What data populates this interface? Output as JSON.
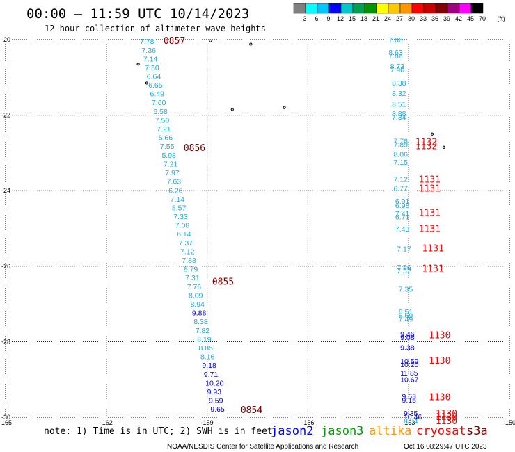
{
  "header": {
    "title": "00:00 – 11:59 UTC 10/14/2023",
    "subtitle": "12 hour collection of altimeter wave heights"
  },
  "colorbar": {
    "unit": "(ft)",
    "ticks": [
      "3",
      "6",
      "9",
      "12",
      "15",
      "18",
      "21",
      "24",
      "27",
      "30",
      "33",
      "36",
      "39",
      "42",
      "45",
      "70"
    ],
    "colors": [
      "#808080",
      "#00ffff",
      "#00c8ff",
      "#0000ff",
      "#00c8c8",
      "#00a050",
      "#009600",
      "#ffff00",
      "#ffc800",
      "#ff9600",
      "#ff0000",
      "#c80000",
      "#800000",
      "#a00080",
      "#ff00ff",
      "#000000"
    ]
  },
  "footer": {
    "note": "note: 1) Time is in UTC; 2) SWH is in feet",
    "credit": "NOAA/NESDIS Center for Satellite Applications and Research",
    "timestamp": "Oct 16 08:29:47 UTC 2023",
    "satellites": [
      {
        "name": "jason2",
        "color": "#0000ff"
      },
      {
        "name": "jason3",
        "color": "#00a000"
      },
      {
        "name": "altika",
        "color": "#ff9600"
      },
      {
        "name": "cryosat",
        "color": "#ff0000"
      },
      {
        "name": "s3a",
        "color": "#800000"
      }
    ]
  },
  "chart_data": {
    "type": "scatter",
    "xlim": [
      -165,
      -150
    ],
    "ylim": [
      -30,
      -20
    ],
    "xticks": [
      -165,
      -162,
      -159,
      -156,
      -153,
      -150
    ],
    "yticks": [
      -20,
      -22,
      -24,
      -26,
      -28,
      -30
    ],
    "xtick_labels": [
      "-165",
      "-162",
      "-159",
      "-156",
      "-153",
      "-150"
    ],
    "ytick_labels": [
      "-20",
      "-22",
      "-24",
      "-26",
      "-28",
      "-30"
    ],
    "grid": true,
    "tracks": [
      {
        "points": [
          {
            "x": -161.0,
            "y": -20.04,
            "v": "7.78",
            "c": "#20a8d8"
          },
          {
            "x": -160.95,
            "y": -20.28,
            "v": "7.36",
            "c": "#20a8d8"
          },
          {
            "x": -160.9,
            "y": -20.51,
            "v": "7.14",
            "c": "#20a8d8"
          },
          {
            "x": -160.85,
            "y": -20.74,
            "v": "7.50",
            "c": "#20a8d8"
          },
          {
            "x": -160.8,
            "y": -20.97,
            "v": "6.64",
            "c": "#20a8d8"
          },
          {
            "x": -160.75,
            "y": -21.2,
            "v": "6.65",
            "c": "#20a8d8"
          },
          {
            "x": -160.7,
            "y": -21.43,
            "v": "6.49",
            "c": "#20a8d8"
          },
          {
            "x": -160.65,
            "y": -21.66,
            "v": "7.60",
            "c": "#20a8d8"
          },
          {
            "x": -160.6,
            "y": -21.9,
            "v": "6.58",
            "c": "#20a8d8"
          },
          {
            "x": -160.55,
            "y": -22.13,
            "v": "7.50",
            "c": "#20a8d8"
          },
          {
            "x": -160.5,
            "y": -22.36,
            "v": "7.21",
            "c": "#20a8d8"
          },
          {
            "x": -160.45,
            "y": -22.59,
            "v": "6.66",
            "c": "#20a8d8"
          },
          {
            "x": -160.4,
            "y": -22.82,
            "v": "7.55",
            "c": "#20a8d8"
          },
          {
            "x": -160.35,
            "y": -23.06,
            "v": "5.98",
            "c": "#20a8d8"
          },
          {
            "x": -160.3,
            "y": -23.29,
            "v": "7.21",
            "c": "#20a8d8"
          },
          {
            "x": -160.25,
            "y": -23.52,
            "v": "7.97",
            "c": "#20a8d8"
          },
          {
            "x": -160.2,
            "y": -23.75,
            "v": "7.63",
            "c": "#20a8d8"
          },
          {
            "x": -160.15,
            "y": -23.99,
            "v": "6.26",
            "c": "#20a8d8"
          },
          {
            "x": -160.1,
            "y": -24.22,
            "v": "7.14",
            "c": "#20a8d8"
          },
          {
            "x": -160.05,
            "y": -24.45,
            "v": "8.57",
            "c": "#20a8d8"
          },
          {
            "x": -160.0,
            "y": -24.68,
            "v": "7.33",
            "c": "#20a8d8"
          },
          {
            "x": -159.95,
            "y": -24.91,
            "v": "7.08",
            "c": "#20a8d8"
          },
          {
            "x": -159.9,
            "y": -25.14,
            "v": "6.14",
            "c": "#20a8d8"
          },
          {
            "x": -159.85,
            "y": -25.38,
            "v": "7.37",
            "c": "#20a8d8"
          },
          {
            "x": -159.8,
            "y": -25.61,
            "v": "7.12",
            "c": "#20a8d8"
          },
          {
            "x": -159.75,
            "y": -25.84,
            "v": "7.88",
            "c": "#20a8d8"
          },
          {
            "x": -159.7,
            "y": -26.07,
            "v": "8.79",
            "c": "#20a8d8"
          },
          {
            "x": -159.65,
            "y": -26.3,
            "v": "7.31",
            "c": "#20a8d8"
          },
          {
            "x": -159.6,
            "y": -26.54,
            "v": "7.76",
            "c": "#20a8d8"
          },
          {
            "x": -159.55,
            "y": -26.77,
            "v": "8.09",
            "c": "#20a8d8"
          },
          {
            "x": -159.5,
            "y": -27.0,
            "v": "8.94",
            "c": "#20a8d8"
          },
          {
            "x": -159.45,
            "y": -27.23,
            "v": "9.88",
            "c": "#0000d0"
          },
          {
            "x": -159.4,
            "y": -27.46,
            "v": "8.38",
            "c": "#20a8d8"
          },
          {
            "x": -159.35,
            "y": -27.7,
            "v": "7.82",
            "c": "#20a8d8"
          },
          {
            "x": -159.3,
            "y": -27.93,
            "v": "8.19",
            "c": "#20a8d8"
          },
          {
            "x": -159.25,
            "y": -28.16,
            "v": "8.85",
            "c": "#20a8d8"
          },
          {
            "x": -159.2,
            "y": -28.39,
            "v": "8.16",
            "c": "#20a8d8"
          },
          {
            "x": -159.15,
            "y": -28.62,
            "v": "9.18",
            "c": "#0000d0"
          },
          {
            "x": -159.1,
            "y": -28.86,
            "v": "9.71",
            "c": "#0000d0"
          },
          {
            "x": -159.05,
            "y": -29.09,
            "v": "10.20",
            "c": "#0000d0"
          },
          {
            "x": -159.0,
            "y": -29.32,
            "v": "9.93",
            "c": "#0000d0"
          },
          {
            "x": -158.95,
            "y": -29.55,
            "v": "9.59",
            "c": "#0000d0"
          },
          {
            "x": -158.9,
            "y": -29.78,
            "v": "9.65",
            "c": "#0000d0"
          }
        ],
        "times": [
          {
            "x": -160.3,
            "y": -20.02,
            "t": "0857",
            "c": "#800000"
          },
          {
            "x": -159.7,
            "y": -22.85,
            "t": "0856",
            "c": "#800000"
          },
          {
            "x": -158.85,
            "y": -26.4,
            "t": "0855",
            "c": "#800000"
          },
          {
            "x": -158.0,
            "y": -29.8,
            "t": "0854",
            "c": "#800000"
          }
        ]
      },
      {
        "points": [
          {
            "x": -153.6,
            "y": -20.0,
            "v": "7.86",
            "c": "#20a8d8"
          },
          {
            "x": -153.6,
            "y": -20.33,
            "v": "8.63",
            "c": "#20a8d8"
          },
          {
            "x": -153.6,
            "y": -20.42,
            "v": "7.86",
            "c": "#20a8d8"
          },
          {
            "x": -153.55,
            "y": -20.7,
            "v": "8.73",
            "c": "#20a8d8"
          },
          {
            "x": -153.55,
            "y": -20.79,
            "v": "7.90",
            "c": "#20a8d8"
          },
          {
            "x": -153.5,
            "y": -21.14,
            "v": "8.38",
            "c": "#20a8d8"
          },
          {
            "x": -153.5,
            "y": -21.42,
            "v": "8.32",
            "c": "#20a8d8"
          },
          {
            "x": -153.5,
            "y": -21.7,
            "v": "8.51",
            "c": "#20a8d8"
          },
          {
            "x": -153.5,
            "y": -21.95,
            "v": "8.88",
            "c": "#20a8d8"
          },
          {
            "x": -153.5,
            "y": -22.04,
            "v": "7.34",
            "c": "#20a8d8"
          },
          {
            "x": -153.45,
            "y": -22.68,
            "v": "7.76",
            "c": "#20a8d8"
          },
          {
            "x": -153.45,
            "y": -22.77,
            "v": "7.89",
            "c": "#20a8d8"
          },
          {
            "x": -153.45,
            "y": -23.03,
            "v": "8.06",
            "c": "#20a8d8"
          },
          {
            "x": -153.45,
            "y": -23.24,
            "v": "7.15",
            "c": "#20a8d8"
          },
          {
            "x": -153.45,
            "y": -23.69,
            "v": "7.12",
            "c": "#20a8d8"
          },
          {
            "x": -153.45,
            "y": -23.93,
            "v": "6.77",
            "c": "#20a8d8"
          },
          {
            "x": -153.4,
            "y": -24.27,
            "v": "6.91",
            "c": "#20a8d8"
          },
          {
            "x": -153.4,
            "y": -24.38,
            "v": "6.98",
            "c": "#20a8d8"
          },
          {
            "x": -153.4,
            "y": -24.6,
            "v": "7.41",
            "c": "#20a8d8"
          },
          {
            "x": -153.4,
            "y": -24.69,
            "v": "6.71",
            "c": "#20a8d8"
          },
          {
            "x": -153.4,
            "y": -25.01,
            "v": "7.43",
            "c": "#20a8d8"
          },
          {
            "x": -153.35,
            "y": -25.53,
            "v": "7.17",
            "c": "#20a8d8"
          },
          {
            "x": -153.35,
            "y": -26.02,
            "v": "7.56",
            "c": "#20a8d8"
          },
          {
            "x": -153.35,
            "y": -26.11,
            "v": "7.32",
            "c": "#20a8d8"
          },
          {
            "x": -153.3,
            "y": -26.6,
            "v": "7.35",
            "c": "#20a8d8"
          },
          {
            "x": -153.3,
            "y": -27.2,
            "v": "8.51",
            "c": "#20a8d8"
          },
          {
            "x": -153.3,
            "y": -27.3,
            "v": "8.69",
            "c": "#20a8d8"
          },
          {
            "x": -153.3,
            "y": -27.39,
            "v": "7.49",
            "c": "#20a8d8"
          },
          {
            "x": -153.25,
            "y": -27.79,
            "v": "9.46",
            "c": "#0000d0"
          },
          {
            "x": -153.25,
            "y": -27.88,
            "v": "9.08",
            "c": "#0000d0"
          },
          {
            "x": -153.25,
            "y": -28.15,
            "v": "9.38",
            "c": "#0000d0"
          },
          {
            "x": -153.25,
            "y": -28.51,
            "v": "10.59",
            "c": "#0000d0"
          },
          {
            "x": -153.25,
            "y": -28.6,
            "v": "10.20",
            "c": "#0000d0"
          },
          {
            "x": -153.25,
            "y": -28.82,
            "v": "11.85",
            "c": "#0000d0"
          },
          {
            "x": -153.25,
            "y": -29.0,
            "v": "10.67",
            "c": "#0000d0"
          },
          {
            "x": -153.2,
            "y": -29.44,
            "v": "9.63",
            "c": "#0000d0"
          },
          {
            "x": -153.2,
            "y": -29.54,
            "v": "9.15",
            "c": "#0000d0"
          },
          {
            "x": -153.15,
            "y": -29.89,
            "v": "9.35",
            "c": "#0000d0"
          },
          {
            "x": -153.15,
            "y": -29.98,
            "v": "10.46",
            "c": "#0000d0"
          },
          {
            "x": -153.15,
            "y": -30.09,
            "v": "8.34",
            "c": "#20a8d8"
          }
        ],
        "times": [
          {
            "x": -152.8,
            "y": -22.7,
            "t": "1132",
            "c": "#ff0000"
          },
          {
            "x": -152.8,
            "y": -22.81,
            "t": "1132",
            "c": "#ff0000"
          },
          {
            "x": -152.7,
            "y": -23.69,
            "t": "1131",
            "c": "#ff0000"
          },
          {
            "x": -152.7,
            "y": -23.93,
            "t": "1131",
            "c": "#ff0000"
          },
          {
            "x": -152.7,
            "y": -24.58,
            "t": "1131",
            "c": "#ff0000"
          },
          {
            "x": -152.7,
            "y": -25.0,
            "t": "1131",
            "c": "#ff0000"
          },
          {
            "x": -152.6,
            "y": -25.52,
            "t": "1131",
            "c": "#ff0000"
          },
          {
            "x": -152.6,
            "y": -26.05,
            "t": "1131",
            "c": "#ff0000"
          },
          {
            "x": -152.4,
            "y": -27.82,
            "t": "1130",
            "c": "#ff0000"
          },
          {
            "x": -152.4,
            "y": -28.49,
            "t": "1130",
            "c": "#ff0000"
          },
          {
            "x": -152.4,
            "y": -29.46,
            "t": "1130",
            "c": "#ff0000"
          },
          {
            "x": -152.2,
            "y": -29.89,
            "t": "1130",
            "c": "#ff0000"
          },
          {
            "x": -152.2,
            "y": -29.98,
            "t": "1130",
            "c": "#ff0000"
          },
          {
            "x": -152.2,
            "y": -30.09,
            "t": "1130",
            "c": "#ff0000"
          }
        ]
      }
    ],
    "islands": [
      [
        -161.05,
        -20.65
      ],
      [
        -160.8,
        -21.15
      ],
      [
        -158.25,
        -21.85
      ],
      [
        -156.7,
        -21.8
      ],
      [
        -152.3,
        -22.5
      ],
      [
        -151.95,
        -22.85
      ],
      [
        -158.9,
        -20.03
      ],
      [
        -157.7,
        -20.12
      ]
    ]
  }
}
